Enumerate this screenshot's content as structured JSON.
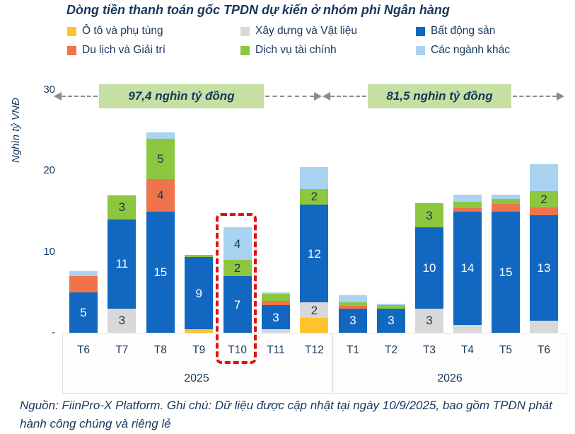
{
  "title": "Dòng tiền thanh toán gốc TPDN dự kiến ở nhóm phi Ngân hàng",
  "legend": [
    {
      "key": "oto",
      "label": "Ô tô và phụ tùng",
      "color": "#FFC32B"
    },
    {
      "key": "xaydung",
      "label": "Xây dựng và Vật liệu",
      "color": "#D8D8D8"
    },
    {
      "key": "bds",
      "label": "Bất động sản",
      "color": "#1267C1"
    },
    {
      "key": "dulich",
      "label": "Du lịch và Giải trí",
      "color": "#F0734B"
    },
    {
      "key": "taichinh",
      "label": "Dịch vụ tài chính",
      "color": "#8DC63F"
    },
    {
      "key": "khac",
      "label": "Các ngành khác",
      "color": "#A9D3F1"
    }
  ],
  "y_axis": {
    "title": "Nghìn tỷ VNĐ",
    "ticks": [
      {
        "label": "30",
        "value": 30
      },
      {
        "label": "20",
        "value": 20
      },
      {
        "label": "10",
        "value": 10
      },
      {
        "label": "-",
        "value": 0
      }
    ]
  },
  "annotations": [
    {
      "group": "2025",
      "text": "97,4 nghìn tỷ đồng"
    },
    {
      "group": "2026",
      "text": "81,5 nghìn tỷ đồng"
    }
  ],
  "highlight": {
    "category": "T10",
    "group": "2025"
  },
  "footer": "Nguồn: FiinPro-X Platform. Ghi chú: Dữ liệu được cập nhật tại ngày 10/9/2025, bao gồm TPDN phát hành công chúng và riêng lẻ",
  "chart_data": {
    "type": "bar",
    "stacked": true,
    "unit": "nghìn tỷ VNĐ",
    "ylim": [
      0,
      30
    ],
    "grid": false,
    "legend_position": "top",
    "groups": [
      {
        "label": "2025",
        "months": [
          "T6",
          "T7",
          "T8",
          "T9",
          "T10",
          "T11",
          "T12"
        ],
        "total_label": "97,4 nghìn tỷ đồng"
      },
      {
        "label": "2026",
        "months": [
          "T1",
          "T2",
          "T3",
          "T4",
          "T5",
          "T6"
        ],
        "total_label": "81,5 nghìn tỷ đồng"
      }
    ],
    "bars": [
      {
        "month": "T6",
        "year": "2025",
        "segments": [
          {
            "key": "bds",
            "value": 5,
            "label": "5"
          },
          {
            "key": "dulich",
            "value": 2
          },
          {
            "key": "khac",
            "value": 0.6
          }
        ]
      },
      {
        "month": "T7",
        "year": "2025",
        "segments": [
          {
            "key": "xaydung",
            "value": 3,
            "label": "3"
          },
          {
            "key": "bds",
            "value": 11,
            "label": "11"
          },
          {
            "key": "taichinh",
            "value": 3,
            "label": "3"
          }
        ]
      },
      {
        "month": "T8",
        "year": "2025",
        "segments": [
          {
            "key": "bds",
            "value": 15,
            "label": "15"
          },
          {
            "key": "dulich",
            "value": 4,
            "label": "4"
          },
          {
            "key": "taichinh",
            "value": 5,
            "label": "5"
          },
          {
            "key": "khac",
            "value": 0.8
          }
        ]
      },
      {
        "month": "T9",
        "year": "2025",
        "segments": [
          {
            "key": "oto",
            "value": 0.4
          },
          {
            "key": "bds",
            "value": 9,
            "label": "9"
          },
          {
            "key": "taichinh",
            "value": 0.2
          }
        ]
      },
      {
        "month": "T10",
        "year": "2025",
        "segments": [
          {
            "key": "bds",
            "value": 7,
            "label": "7"
          },
          {
            "key": "taichinh",
            "value": 2,
            "label": "2"
          },
          {
            "key": "khac",
            "value": 4,
            "label": "4"
          }
        ]
      },
      {
        "month": "T11",
        "year": "2025",
        "segments": [
          {
            "key": "xaydung",
            "value": 0.4
          },
          {
            "key": "bds",
            "value": 3,
            "label": "3"
          },
          {
            "key": "dulich",
            "value": 0.5
          },
          {
            "key": "taichinh",
            "value": 0.9
          },
          {
            "key": "khac",
            "value": 0.2
          }
        ]
      },
      {
        "month": "T12",
        "year": "2025",
        "segments": [
          {
            "key": "oto",
            "value": 1.8
          },
          {
            "key": "xaydung",
            "value": 2,
            "label": "2"
          },
          {
            "key": "bds",
            "value": 12,
            "label": "12"
          },
          {
            "key": "taichinh",
            "value": 2,
            "label": "2"
          },
          {
            "key": "khac",
            "value": 2.7
          }
        ]
      },
      {
        "month": "T1",
        "year": "2026",
        "segments": [
          {
            "key": "bds",
            "value": 3,
            "label": "3"
          },
          {
            "key": "dulich",
            "value": 0.3
          },
          {
            "key": "taichinh",
            "value": 0.5
          },
          {
            "key": "khac",
            "value": 0.8
          }
        ]
      },
      {
        "month": "T2",
        "year": "2026",
        "segments": [
          {
            "key": "bds",
            "value": 3,
            "label": "3"
          },
          {
            "key": "taichinh",
            "value": 0.4
          },
          {
            "key": "khac",
            "value": 0.15
          }
        ]
      },
      {
        "month": "T3",
        "year": "2026",
        "segments": [
          {
            "key": "xaydung",
            "value": 3,
            "label": "3"
          },
          {
            "key": "bds",
            "value": 10,
            "label": "10"
          },
          {
            "key": "taichinh",
            "value": 3,
            "label": "3"
          }
        ]
      },
      {
        "month": "T4",
        "year": "2026",
        "segments": [
          {
            "key": "xaydung",
            "value": 1
          },
          {
            "key": "bds",
            "value": 14,
            "label": "14"
          },
          {
            "key": "dulich",
            "value": 0.4
          },
          {
            "key": "taichinh",
            "value": 0.8
          },
          {
            "key": "khac",
            "value": 0.9
          }
        ]
      },
      {
        "month": "T5",
        "year": "2026",
        "segments": [
          {
            "key": "bds",
            "value": 15,
            "label": "15"
          },
          {
            "key": "dulich",
            "value": 0.9
          },
          {
            "key": "taichinh",
            "value": 0.6
          },
          {
            "key": "khac",
            "value": 0.6
          }
        ]
      },
      {
        "month": "T6",
        "year": "2026",
        "segments": [
          {
            "key": "xaydung",
            "value": 1.5
          },
          {
            "key": "bds",
            "value": 13,
            "label": "13"
          },
          {
            "key": "dulich",
            "value": 1
          },
          {
            "key": "taichinh",
            "value": 2,
            "label": "2"
          },
          {
            "key": "khac",
            "value": 3.3
          }
        ]
      }
    ]
  }
}
